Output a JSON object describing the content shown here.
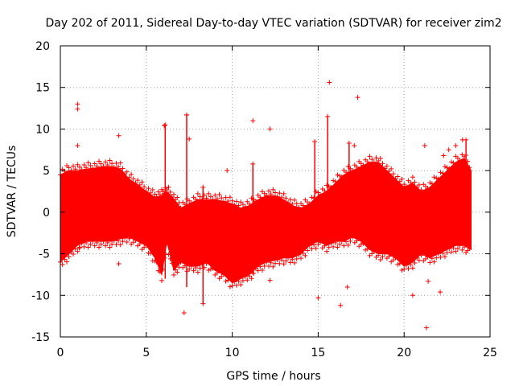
{
  "chart_data": {
    "type": "scatter",
    "title": "Day 202 of 2011, Sidereal Day-to-day VTEC variation (SDTVAR) for receiver zim2",
    "xlabel": "GPS time / hours",
    "ylabel": "SDTVAR / TECUs",
    "xlim": [
      0,
      25
    ],
    "ylim": [
      -15,
      20
    ],
    "xticks": [
      0,
      5,
      10,
      15,
      20,
      25
    ],
    "yticks": [
      -15,
      -10,
      -5,
      0,
      5,
      10,
      15,
      20
    ],
    "grid": true,
    "marker": "+",
    "color": "#ff0000",
    "series": [
      {
        "name": "SDTVAR",
        "envelope": {
          "x": [
            0.0,
            0.5,
            1.0,
            1.5,
            2.0,
            2.5,
            3.0,
            3.5,
            4.0,
            4.5,
            5.0,
            5.5,
            5.9,
            6.2,
            6.6,
            7.0,
            7.5,
            8.0,
            8.5,
            9.0,
            9.5,
            10.0,
            10.5,
            11.0,
            11.5,
            12.0,
            12.5,
            13.0,
            13.5,
            14.0,
            14.5,
            15.0,
            15.5,
            16.0,
            16.5,
            17.0,
            17.5,
            18.0,
            18.5,
            19.0,
            19.5,
            20.0,
            20.5,
            21.0,
            21.5,
            22.0,
            22.5,
            23.0,
            23.5,
            23.9
          ],
          "upper": [
            4.5,
            5.0,
            5.0,
            5.2,
            5.3,
            5.5,
            5.5,
            5.2,
            4.0,
            3.3,
            2.5,
            1.8,
            2.0,
            2.5,
            1.6,
            0.5,
            1.0,
            1.5,
            1.5,
            1.5,
            1.3,
            1.0,
            0.5,
            0.8,
            1.5,
            2.0,
            2.0,
            1.5,
            0.8,
            0.5,
            1.0,
            2.0,
            2.5,
            3.5,
            4.5,
            5.0,
            5.5,
            6.0,
            6.0,
            5.0,
            4.0,
            3.0,
            3.5,
            2.5,
            3.0,
            4.0,
            5.0,
            6.0,
            6.5,
            5.0
          ],
          "lower": [
            -6.0,
            -5.0,
            -4.0,
            -3.5,
            -3.5,
            -3.5,
            -3.5,
            -3.2,
            -3.0,
            -3.5,
            -4.0,
            -5.5,
            -7.5,
            -3.5,
            -7.0,
            -6.0,
            -6.5,
            -6.5,
            -6.0,
            -7.0,
            -7.5,
            -8.5,
            -8.0,
            -7.5,
            -6.5,
            -6.0,
            -5.8,
            -5.5,
            -5.5,
            -5.0,
            -4.0,
            -3.5,
            -4.0,
            -3.5,
            -3.5,
            -3.0,
            -3.5,
            -4.5,
            -5.0,
            -5.0,
            -5.5,
            -6.5,
            -6.0,
            -5.0,
            -5.5,
            -5.0,
            -4.5,
            -4.0,
            -4.0,
            -4.5
          ]
        },
        "spikes": [
          {
            "x": 6.1,
            "lo": -8.0,
            "hi": 10.5
          },
          {
            "x": 7.35,
            "lo": -9.0,
            "hi": 11.7
          },
          {
            "x": 8.3,
            "lo": -11.0,
            "hi": 3.0
          },
          {
            "x": 11.2,
            "lo": -7.5,
            "hi": 5.8
          },
          {
            "x": 14.8,
            "lo": -2.0,
            "hi": 8.5
          },
          {
            "x": 15.55,
            "lo": 0.0,
            "hi": 11.5
          },
          {
            "x": 16.8,
            "lo": 0.0,
            "hi": 8.3
          },
          {
            "x": 23.6,
            "lo": -1.0,
            "hi": 8.7
          }
        ],
        "outliers": [
          {
            "x": 1.0,
            "y": 13.0
          },
          {
            "x": 1.0,
            "y": 12.4
          },
          {
            "x": 1.0,
            "y": 8.0
          },
          {
            "x": 1.1,
            "y": -4.3
          },
          {
            "x": 3.4,
            "y": 9.2
          },
          {
            "x": 3.4,
            "y": -6.2
          },
          {
            "x": 6.05,
            "y": 10.4
          },
          {
            "x": 7.35,
            "y": 11.7
          },
          {
            "x": 7.5,
            "y": 8.8
          },
          {
            "x": 7.2,
            "y": -12.1
          },
          {
            "x": 8.3,
            "y": -11.0
          },
          {
            "x": 9.7,
            "y": 5.0
          },
          {
            "x": 11.2,
            "y": 11.0
          },
          {
            "x": 12.2,
            "y": 10.0
          },
          {
            "x": 12.2,
            "y": -8.2
          },
          {
            "x": 15.0,
            "y": -10.3
          },
          {
            "x": 15.65,
            "y": 15.6
          },
          {
            "x": 16.3,
            "y": -11.2
          },
          {
            "x": 16.7,
            "y": -9.0
          },
          {
            "x": 17.3,
            "y": 13.8
          },
          {
            "x": 17.1,
            "y": 8.0
          },
          {
            "x": 20.5,
            "y": -10.0
          },
          {
            "x": 21.2,
            "y": 8.0
          },
          {
            "x": 21.3,
            "y": -13.9
          },
          {
            "x": 21.4,
            "y": -8.3
          },
          {
            "x": 22.1,
            "y": -9.6
          },
          {
            "x": 22.3,
            "y": 6.8
          },
          {
            "x": 22.6,
            "y": 7.5
          },
          {
            "x": 23.0,
            "y": 8.0
          },
          {
            "x": 23.4,
            "y": 8.7
          }
        ]
      }
    ]
  }
}
